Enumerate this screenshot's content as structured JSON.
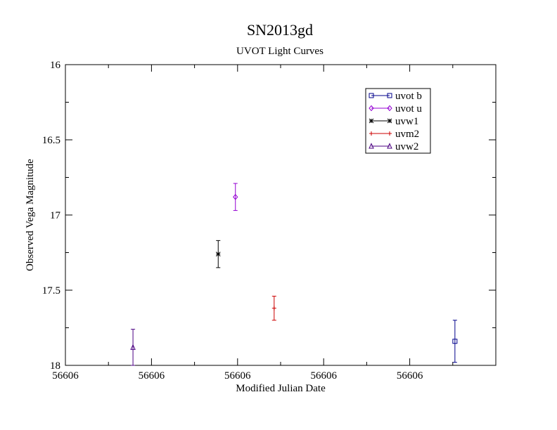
{
  "chart_data": {
    "type": "scatter",
    "title": "SN2013gd",
    "subtitle": "UVOT Light Curves",
    "xlabel": "Modified Julian Date",
    "ylabel": "Observed Vega Magnitude",
    "y_reversed": true,
    "ylim": [
      16,
      18
    ],
    "y_ticks": [
      "16",
      "16.5",
      "17",
      "17.5",
      "18"
    ],
    "x_tick_labels": [
      "56606",
      "56606",
      "56606",
      "56606",
      "56606"
    ],
    "x_tick_count": 5,
    "x_minor_per_major": 2,
    "grid": false,
    "legend_position": "top-right",
    "series": [
      {
        "name": "uvot b",
        "color": "#00008b",
        "marker": "square",
        "x": 0.905,
        "y": 17.84,
        "err": 0.14
      },
      {
        "name": "uvot u",
        "color": "#9400d3",
        "marker": "diamond",
        "x": 0.395,
        "y": 16.88,
        "err": 0.09
      },
      {
        "name": "uvw1",
        "color": "#000000",
        "marker": "asterisk",
        "x": 0.355,
        "y": 17.26,
        "err": 0.09
      },
      {
        "name": "uvm2",
        "color": "#cc0000",
        "marker": "plus",
        "x": 0.485,
        "y": 17.62,
        "err": 0.08
      },
      {
        "name": "uvw2",
        "color": "#4b0082",
        "marker": "triangle",
        "x": 0.157,
        "y": 17.88,
        "err": 0.12
      }
    ]
  }
}
